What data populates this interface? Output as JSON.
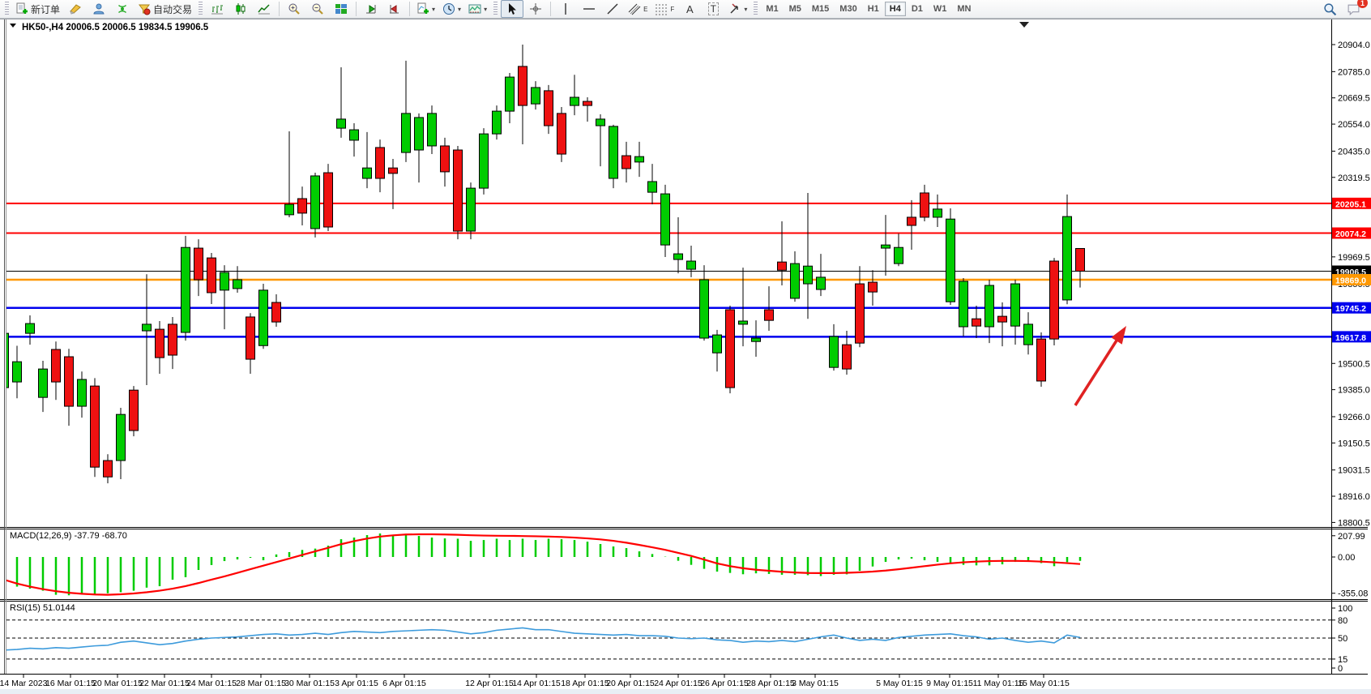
{
  "toolbar": {
    "new_order_label": "新订单",
    "autotrade_label": "自动交易",
    "text_tool_label": "A",
    "label_tool_label": "T",
    "channel_tool_label": "E",
    "fibo_tool_label": "F",
    "timeframes": [
      "M1",
      "M5",
      "M15",
      "M30",
      "H1",
      "H4",
      "D1",
      "W1",
      "MN"
    ],
    "active_timeframe": "H4",
    "notification_badge": "1",
    "icon_names": [
      "new-order-icon",
      "brush-icon",
      "community-icon",
      "signals-icon",
      "autotrade-icon",
      "bar-chart-icon",
      "candlestick-icon",
      "line-chart-icon",
      "zoom-in-icon",
      "zoom-out-icon",
      "tile-windows-icon",
      "autoscroll-icon",
      "chart-shift-icon",
      "new-chart-icon",
      "period-icon",
      "template-icon",
      "cursor-icon",
      "crosshair-icon",
      "vertical-line-icon",
      "horizontal-line-icon",
      "trendline-icon",
      "channel-icon",
      "fibonacci-icon",
      "text-icon",
      "label-icon",
      "arrows-icon",
      "search-icon",
      "chat-icon"
    ]
  },
  "chart": {
    "title_symbol": "HK50-,H4",
    "title_values": "20006.5 20006.5 19834.5 19906.5"
  },
  "chart_data": {
    "type": "candlestick",
    "symbol": "HK50-",
    "timeframe": "H4",
    "last_ohlc": {
      "open": 20006.5,
      "high": 20006.5,
      "low": 19834.5,
      "close": 19906.5
    },
    "bull_color": "#00cc00",
    "bear_color": "#ee1111",
    "candles": [
      [
        19394,
        19654,
        19369,
        19633
      ],
      [
        19419,
        19578,
        19347,
        19508
      ],
      [
        19633,
        19712,
        19583,
        19676
      ],
      [
        19351,
        19512,
        19287,
        19476
      ],
      [
        19562,
        19597,
        19340,
        19419
      ],
      [
        19530,
        19565,
        19226,
        19312
      ],
      [
        19312,
        19465,
        19262,
        19430
      ],
      [
        19401,
        19436,
        19001,
        19044
      ],
      [
        19073,
        19101,
        18973,
        19001
      ],
      [
        19073,
        19305,
        18991,
        19276
      ],
      [
        19383,
        19401,
        19180,
        19205
      ],
      [
        19644,
        19893,
        19405,
        19673
      ],
      [
        19651,
        19687,
        19455,
        19526
      ],
      [
        19673,
        19705,
        19476,
        19537
      ],
      [
        19637,
        20062,
        19601,
        20011
      ],
      [
        20008,
        20047,
        19797,
        19869
      ],
      [
        19965,
        19987,
        19762,
        19812
      ],
      [
        19823,
        19933,
        19651,
        19901
      ],
      [
        19830,
        19929,
        19812,
        19869
      ],
      [
        19705,
        19722,
        19455,
        19519
      ],
      [
        19579,
        19851,
        19565,
        19823
      ],
      [
        19769,
        19805,
        19662,
        19683
      ],
      [
        20155,
        20522,
        20144,
        20201
      ],
      [
        20226,
        20279,
        20108,
        20162
      ],
      [
        20094,
        20340,
        20055,
        20326
      ],
      [
        20340,
        20379,
        20083,
        20101
      ],
      [
        20536,
        20804,
        20494,
        20576
      ],
      [
        20483,
        20558,
        20411,
        20529
      ],
      [
        20315,
        20519,
        20272,
        20361
      ],
      [
        20451,
        20486,
        20254,
        20315
      ],
      [
        20361,
        20401,
        20180,
        20337
      ],
      [
        20429,
        20833,
        20387,
        20601
      ],
      [
        20440,
        20601,
        20297,
        20583
      ],
      [
        20458,
        20636,
        20422,
        20601
      ],
      [
        20458,
        20494,
        20279,
        20344
      ],
      [
        20440,
        20458,
        20047,
        20083
      ],
      [
        20083,
        20297,
        20047,
        20272
      ],
      [
        20272,
        20536,
        20244,
        20511
      ],
      [
        20511,
        20636,
        20486,
        20611
      ],
      [
        20611,
        20779,
        20558,
        20761
      ],
      [
        20808,
        20904,
        20465,
        20636
      ],
      [
        20643,
        20743,
        20618,
        20715
      ],
      [
        20701,
        20726,
        20511,
        20547
      ],
      [
        20601,
        20629,
        20387,
        20422
      ],
      [
        20636,
        20771,
        20593,
        20672
      ],
      [
        20654,
        20672,
        20565,
        20636
      ],
      [
        20547,
        20597,
        20368,
        20576
      ],
      [
        20315,
        20551,
        20272,
        20544
      ],
      [
        20415,
        20476,
        20297,
        20358
      ],
      [
        20387,
        20476,
        20322,
        20411
      ],
      [
        20254,
        20379,
        20201,
        20301
      ],
      [
        20022,
        20287,
        19969,
        20247
      ],
      [
        19958,
        20144,
        19897,
        19983
      ],
      [
        19915,
        20019,
        19880,
        19951
      ],
      [
        19612,
        19933,
        19601,
        19869
      ],
      [
        19547,
        19648,
        19465,
        19626
      ],
      [
        19737,
        19755,
        19369,
        19394
      ],
      [
        19673,
        19922,
        19576,
        19687
      ],
      [
        19597,
        19690,
        19530,
        19612
      ],
      [
        19737,
        19840,
        19644,
        19690
      ],
      [
        19947,
        20126,
        19844,
        19911
      ],
      [
        19787,
        19994,
        19772,
        19940
      ],
      [
        19851,
        20251,
        19697,
        19929
      ],
      [
        19826,
        19983,
        19797,
        19880
      ],
      [
        19483,
        19673,
        19469,
        19619
      ],
      [
        19583,
        19644,
        19451,
        19476
      ],
      [
        19851,
        19929,
        19572,
        19590
      ],
      [
        19858,
        19911,
        19755,
        19815
      ],
      [
        20008,
        20154,
        19887,
        20022
      ],
      [
        19940,
        20072,
        19929,
        20011
      ],
      [
        20144,
        20219,
        20001,
        20108
      ],
      [
        20251,
        20287,
        20126,
        20144
      ],
      [
        20144,
        20244,
        20101,
        20180
      ],
      [
        19772,
        20183,
        19758,
        20136
      ],
      [
        19662,
        19876,
        19619,
        19862
      ],
      [
        19697,
        19755,
        19612,
        19665
      ],
      [
        19662,
        19869,
        19590,
        19844
      ],
      [
        19708,
        19769,
        19576,
        19683
      ],
      [
        19665,
        19869,
        19583,
        19851
      ],
      [
        19583,
        19726,
        19540,
        19673
      ],
      [
        19608,
        19637,
        19398,
        19423
      ],
      [
        19951,
        19965,
        19580,
        19608
      ],
      [
        19780,
        20244,
        19761,
        20147
      ],
      [
        20006.5,
        20006.5,
        19834.5,
        19906.5
      ]
    ],
    "horizontal_levels": [
      {
        "label": "20205.1",
        "price": 20205.1,
        "color": "#ff0000",
        "width": 2
      },
      {
        "label": "20074.2",
        "price": 20074.2,
        "color": "#ff0000",
        "width": 2
      },
      {
        "label": "19906.5",
        "price": 19906.5,
        "color": "#000000",
        "width": 1
      },
      {
        "label": "19869.0",
        "price": 19869.0,
        "color": "#ff9800",
        "width": 2.5
      },
      {
        "label": "19745.2",
        "price": 19745.2,
        "color": "#0000ee",
        "width": 2.5
      },
      {
        "label": "19617.8",
        "price": 19617.8,
        "color": "#0000ee",
        "width": 2.5
      }
    ],
    "price_ticks": [
      [
        "20904.0",
        20904
      ],
      [
        "20785.0",
        20785
      ],
      [
        "20669.5",
        20669.5
      ],
      [
        "20554.0",
        20554
      ],
      [
        "20435.0",
        20435
      ],
      [
        "20319.5",
        20319.5
      ],
      [
        "19969.5",
        19969.5
      ],
      [
        "19850.5",
        19850.5
      ],
      [
        "19500.5",
        19500.5
      ],
      [
        "19385.0",
        19385
      ],
      [
        "19266.0",
        19266
      ],
      [
        "19150.5",
        19150.5
      ],
      [
        "19031.5",
        19031.5
      ],
      [
        "18916.0",
        18916
      ],
      [
        "18800.5",
        18800.5
      ]
    ],
    "time_labels": [
      [
        29,
        "14 Mar 2023"
      ],
      [
        87,
        "16 Mar 01:15"
      ],
      [
        145,
        "20 Mar 01:15"
      ],
      [
        203,
        "22 Mar 01:15"
      ],
      [
        261,
        "24 Mar 01:15"
      ],
      [
        322,
        "28 Mar 01:15"
      ],
      [
        382,
        "30 Mar 01:15"
      ],
      [
        440,
        "3 Apr 01:15"
      ],
      [
        499,
        "6 Apr 01:15"
      ],
      [
        604,
        "12 Apr 01:15"
      ],
      [
        662,
        "14 Apr 01:15"
      ],
      [
        722,
        "18 Apr 01:15"
      ],
      [
        778,
        "20 Apr 01:15"
      ],
      [
        837,
        "24 Apr 01:15"
      ],
      [
        894,
        "26 Apr 01:15"
      ],
      [
        951,
        "28 Apr 01:15"
      ],
      [
        1006,
        "3 May 01:15"
      ],
      [
        1110,
        "5 May 01:15"
      ],
      [
        1172,
        "9 May 01:15"
      ],
      [
        1232,
        "11 May 01:15"
      ],
      [
        1288,
        "15 May 01:15"
      ]
    ],
    "macd": {
      "label": "MACD(12,26,9) -37.79 -68.70",
      "histogram_color": "#00cc00",
      "signal_color": "#ff0000",
      "ticks": [
        [
          "207.99",
          207.99
        ],
        [
          "0.00",
          0
        ],
        [
          "-355.08",
          -355.08
        ]
      ],
      "histogram": [
        -250,
        -290,
        -310,
        -330,
        -370,
        -375,
        -360,
        -370,
        -355,
        -345,
        -330,
        -300,
        -286,
        -222,
        -198,
        -127,
        -79,
        -40,
        -24,
        -8,
        -32,
        25,
        48,
        69,
        82,
        111,
        174,
        190,
        214,
        230,
        214,
        227,
        206,
        190,
        182,
        179,
        158,
        166,
        179,
        166,
        179,
        166,
        179,
        174,
        166,
        150,
        127,
        103,
        87,
        55,
        29,
        3,
        -37,
        -77,
        -116,
        -143,
        -156,
        -169,
        -160,
        -166,
        -174,
        -174,
        -178,
        -187,
        -174,
        -170,
        -135,
        -93,
        -48,
        -24,
        -16,
        -32,
        -48,
        -63,
        -77,
        -82,
        -82,
        -72,
        -48,
        -32,
        -60,
        -90,
        -50,
        -38
      ],
      "signal": [
        -222,
        -260,
        -290,
        -315,
        -335,
        -350,
        -360,
        -367,
        -370,
        -365,
        -357,
        -345,
        -330,
        -310,
        -285,
        -255,
        -222,
        -190,
        -155,
        -120,
        -85,
        -50,
        -15,
        20,
        55,
        90,
        125,
        155,
        180,
        200,
        212,
        220,
        222,
        222,
        220,
        217,
        213,
        210,
        208,
        207,
        205,
        203,
        200,
        196,
        190,
        182,
        172,
        158,
        140,
        118,
        95,
        70,
        40,
        10,
        -25,
        -63,
        -90,
        -110,
        -125,
        -135,
        -145,
        -152,
        -157,
        -158,
        -158,
        -155,
        -150,
        -143,
        -133,
        -120,
        -105,
        -90,
        -75,
        -62,
        -52,
        -45,
        -40,
        -38,
        -38,
        -40,
        -45,
        -52,
        -60,
        -69
      ]
    },
    "rsi": {
      "label": "RSI(15) 51.0144",
      "line_color": "#3d9bdc",
      "levels": [
        80,
        50,
        15
      ],
      "ticks": [
        [
          "100",
          100
        ],
        [
          "80",
          80
        ],
        [
          "50",
          50
        ],
        [
          "15",
          15
        ],
        [
          "0",
          0
        ]
      ],
      "values": [
        30,
        31,
        33,
        32,
        34,
        33,
        35,
        37,
        38,
        43,
        45,
        42,
        39,
        41,
        45,
        48,
        50,
        51,
        52,
        54,
        56,
        57,
        55,
        56,
        58,
        56,
        59,
        61,
        60,
        59,
        61,
        62,
        63,
        64,
        63,
        60,
        57,
        59,
        63,
        65,
        67,
        64,
        64,
        61,
        58,
        57,
        56,
        55,
        56,
        54,
        54,
        53,
        50,
        49,
        50,
        47,
        46,
        43,
        45,
        44,
        46,
        44,
        48,
        52,
        55,
        50,
        46,
        48,
        46,
        51,
        53,
        55,
        56,
        57,
        54,
        52,
        48,
        50,
        46,
        43,
        45,
        42,
        55,
        51
      ]
    },
    "annotation_arrow": {
      "from": [
        1327,
        500
      ],
      "to": [
        1390,
        402
      ],
      "color": "#e02222"
    }
  }
}
